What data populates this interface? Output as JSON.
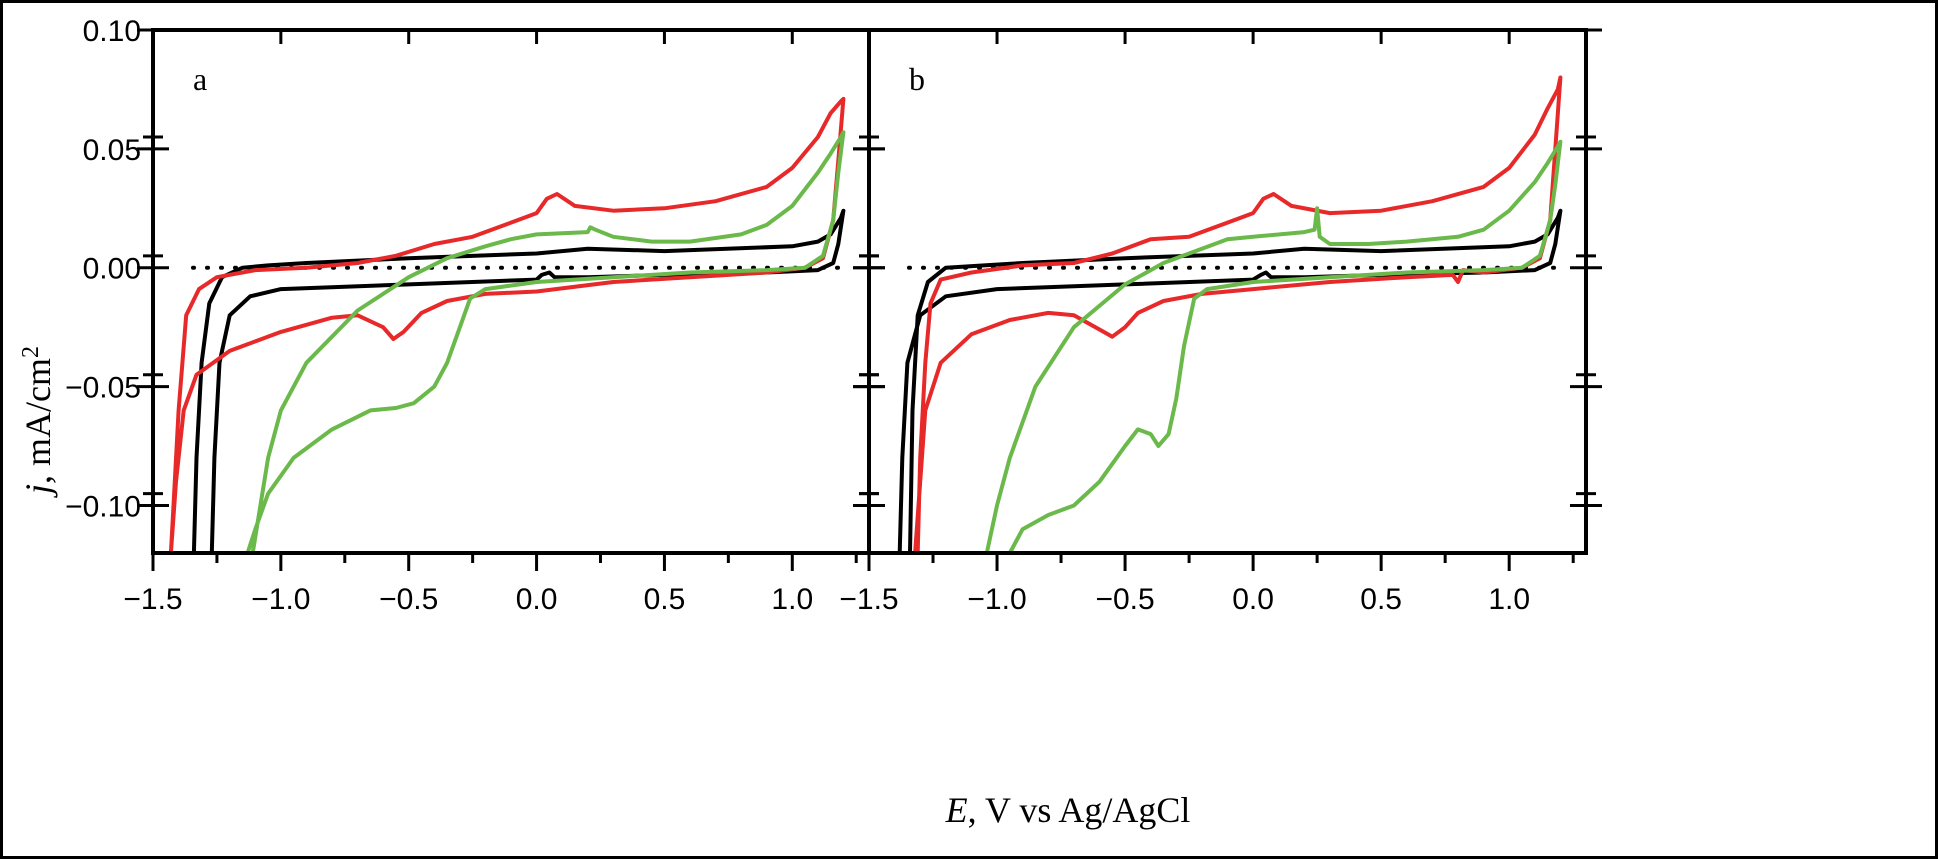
{
  "figure": {
    "ylabel_italic": "j",
    "ylabel_rest": ", mA/cm",
    "ylabel_sup": "2",
    "xlabel_italic": "E",
    "xlabel_rest": ", V vs Ag/AgCl"
  },
  "colors": {
    "black": "#000000",
    "red": "#e8292a",
    "green": "#6ab94a"
  },
  "chart_data": [
    {
      "panel": "a",
      "type": "line",
      "xlim": [
        -1.5,
        1.3
      ],
      "ylim": [
        -0.12,
        0.1
      ],
      "xticks": [
        -1.5,
        -1.0,
        -0.5,
        0.0,
        0.5,
        1.0
      ],
      "xtick_labels": [
        "−1.5",
        "−1.0",
        "−0.5",
        "0.0",
        "0.5",
        "1.0"
      ],
      "yticks": [
        0.1,
        0.05,
        0.0,
        -0.05,
        -0.1
      ],
      "ytick_labels": [
        "0.10",
        "0.05",
        "0.00",
        "−0.05",
        "−0.10"
      ],
      "zero_line": true,
      "series": [
        {
          "color": "black",
          "points": [
            [
              -1.27,
              -0.12
            ],
            [
              -1.26,
              -0.08
            ],
            [
              -1.24,
              -0.04
            ],
            [
              -1.2,
              -0.02
            ],
            [
              -1.12,
              -0.012
            ],
            [
              -1.0,
              -0.009
            ],
            [
              -0.5,
              -0.007
            ],
            [
              0.0,
              -0.005
            ],
            [
              0.02,
              -0.003
            ],
            [
              0.05,
              -0.002
            ],
            [
              0.07,
              -0.004
            ],
            [
              0.2,
              -0.004
            ],
            [
              0.5,
              -0.003
            ],
            [
              0.9,
              -0.002
            ],
            [
              1.1,
              -0.001
            ],
            [
              1.16,
              0.002
            ],
            [
              1.18,
              0.01
            ],
            [
              1.2,
              0.024
            ],
            [
              1.19,
              0.021
            ],
            [
              1.15,
              0.014
            ],
            [
              1.1,
              0.011
            ],
            [
              1.0,
              0.009
            ],
            [
              0.5,
              0.007
            ],
            [
              0.2,
              0.008
            ],
            [
              0.0,
              0.006
            ],
            [
              -0.5,
              0.004
            ],
            [
              -0.9,
              0.002
            ],
            [
              -1.05,
              0.001
            ],
            [
              -1.15,
              0.0
            ],
            [
              -1.23,
              -0.004
            ],
            [
              -1.28,
              -0.015
            ],
            [
              -1.31,
              -0.04
            ],
            [
              -1.33,
              -0.08
            ],
            [
              -1.34,
              -0.12
            ]
          ]
        },
        {
          "color": "red",
          "points": [
            [
              -1.43,
              -0.12
            ],
            [
              -1.41,
              -0.09
            ],
            [
              -1.38,
              -0.06
            ],
            [
              -1.33,
              -0.045
            ],
            [
              -1.2,
              -0.035
            ],
            [
              -1.0,
              -0.027
            ],
            [
              -0.8,
              -0.021
            ],
            [
              -0.7,
              -0.02
            ],
            [
              -0.6,
              -0.025
            ],
            [
              -0.56,
              -0.03
            ],
            [
              -0.52,
              -0.027
            ],
            [
              -0.45,
              -0.019
            ],
            [
              -0.35,
              -0.014
            ],
            [
              -0.2,
              -0.011
            ],
            [
              0.0,
              -0.01
            ],
            [
              0.3,
              -0.006
            ],
            [
              0.6,
              -0.004
            ],
            [
              0.9,
              -0.002
            ],
            [
              1.05,
              0.0
            ],
            [
              1.12,
              0.004
            ],
            [
              1.16,
              0.02
            ],
            [
              1.18,
              0.045
            ],
            [
              1.2,
              0.071
            ],
            [
              1.19,
              0.07
            ],
            [
              1.15,
              0.065
            ],
            [
              1.1,
              0.055
            ],
            [
              1.0,
              0.042
            ],
            [
              0.9,
              0.034
            ],
            [
              0.7,
              0.028
            ],
            [
              0.5,
              0.025
            ],
            [
              0.3,
              0.024
            ],
            [
              0.15,
              0.026
            ],
            [
              0.08,
              0.031
            ],
            [
              0.04,
              0.029
            ],
            [
              0.0,
              0.023
            ],
            [
              -0.1,
              0.019
            ],
            [
              -0.25,
              0.013
            ],
            [
              -0.4,
              0.01
            ],
            [
              -0.55,
              0.005
            ],
            [
              -0.7,
              0.002
            ],
            [
              -0.9,
              0.0
            ],
            [
              -1.1,
              -0.001
            ],
            [
              -1.25,
              -0.004
            ],
            [
              -1.32,
              -0.009
            ],
            [
              -1.37,
              -0.02
            ],
            [
              -1.4,
              -0.06
            ],
            [
              -1.42,
              -0.1
            ],
            [
              -1.43,
              -0.12
            ]
          ]
        },
        {
          "color": "green",
          "points": [
            [
              -1.13,
              -0.12
            ],
            [
              -1.1,
              -0.11
            ],
            [
              -1.05,
              -0.095
            ],
            [
              -0.95,
              -0.08
            ],
            [
              -0.8,
              -0.068
            ],
            [
              -0.65,
              -0.06
            ],
            [
              -0.55,
              -0.059
            ],
            [
              -0.48,
              -0.057
            ],
            [
              -0.4,
              -0.05
            ],
            [
              -0.35,
              -0.04
            ],
            [
              -0.3,
              -0.025
            ],
            [
              -0.26,
              -0.013
            ],
            [
              -0.2,
              -0.009
            ],
            [
              0.0,
              -0.006
            ],
            [
              0.3,
              -0.004
            ],
            [
              0.6,
              -0.002
            ],
            [
              0.9,
              -0.001
            ],
            [
              1.05,
              0.0
            ],
            [
              1.12,
              0.005
            ],
            [
              1.16,
              0.02
            ],
            [
              1.18,
              0.04
            ],
            [
              1.2,
              0.057
            ],
            [
              1.19,
              0.055
            ],
            [
              1.15,
              0.048
            ],
            [
              1.1,
              0.04
            ],
            [
              1.0,
              0.026
            ],
            [
              0.9,
              0.018
            ],
            [
              0.8,
              0.014
            ],
            [
              0.6,
              0.011
            ],
            [
              0.45,
              0.011
            ],
            [
              0.3,
              0.013
            ],
            [
              0.23,
              0.016
            ],
            [
              0.21,
              0.017
            ],
            [
              0.2,
              0.015
            ],
            [
              0.0,
              0.014
            ],
            [
              -0.1,
              0.012
            ],
            [
              -0.2,
              0.009
            ],
            [
              -0.35,
              0.004
            ],
            [
              -0.5,
              -0.004
            ],
            [
              -0.7,
              -0.018
            ],
            [
              -0.9,
              -0.04
            ],
            [
              -1.0,
              -0.06
            ],
            [
              -1.05,
              -0.08
            ],
            [
              -1.08,
              -0.1
            ],
            [
              -1.11,
              -0.12
            ]
          ]
        }
      ]
    },
    {
      "panel": "b",
      "type": "line",
      "xlim": [
        -1.5,
        1.3
      ],
      "ylim": [
        -0.12,
        0.1
      ],
      "xticks": [
        -1.5,
        -1.0,
        -0.5,
        0.0,
        0.5,
        1.0
      ],
      "xtick_labels": [
        "−1.5",
        "−1.0",
        "−0.5",
        "0.0",
        "0.5",
        "1.0"
      ],
      "yticks": [
        0.1,
        0.05,
        0.0,
        -0.05,
        -0.1
      ],
      "ytick_labels": [
        "0.10",
        "0.05",
        "0.00",
        "−0.05",
        "−0.10"
      ],
      "zero_line": true,
      "series": [
        {
          "color": "black",
          "points": [
            [
              -1.38,
              -0.12
            ],
            [
              -1.37,
              -0.08
            ],
            [
              -1.35,
              -0.04
            ],
            [
              -1.3,
              -0.02
            ],
            [
              -1.2,
              -0.012
            ],
            [
              -1.0,
              -0.009
            ],
            [
              -0.5,
              -0.007
            ],
            [
              0.0,
              -0.005
            ],
            [
              0.03,
              -0.003
            ],
            [
              0.05,
              -0.002
            ],
            [
              0.07,
              -0.004
            ],
            [
              0.2,
              -0.004
            ],
            [
              0.5,
              -0.003
            ],
            [
              0.9,
              -0.002
            ],
            [
              1.1,
              -0.001
            ],
            [
              1.16,
              0.002
            ],
            [
              1.18,
              0.01
            ],
            [
              1.2,
              0.024
            ],
            [
              1.19,
              0.021
            ],
            [
              1.15,
              0.014
            ],
            [
              1.1,
              0.011
            ],
            [
              1.0,
              0.009
            ],
            [
              0.5,
              0.007
            ],
            [
              0.2,
              0.008
            ],
            [
              0.0,
              0.006
            ],
            [
              -0.5,
              0.004
            ],
            [
              -0.9,
              0.002
            ],
            [
              -1.05,
              0.001
            ],
            [
              -1.2,
              0.0
            ],
            [
              -1.27,
              -0.006
            ],
            [
              -1.31,
              -0.02
            ],
            [
              -1.33,
              -0.06
            ],
            [
              -1.34,
              -0.12
            ]
          ]
        },
        {
          "color": "red",
          "points": [
            [
              -1.32,
              -0.12
            ],
            [
              -1.3,
              -0.09
            ],
            [
              -1.28,
              -0.06
            ],
            [
              -1.22,
              -0.04
            ],
            [
              -1.1,
              -0.028
            ],
            [
              -0.95,
              -0.022
            ],
            [
              -0.8,
              -0.019
            ],
            [
              -0.7,
              -0.02
            ],
            [
              -0.6,
              -0.026
            ],
            [
              -0.55,
              -0.029
            ],
            [
              -0.5,
              -0.025
            ],
            [
              -0.45,
              -0.019
            ],
            [
              -0.35,
              -0.014
            ],
            [
              -0.2,
              -0.011
            ],
            [
              0.0,
              -0.009
            ],
            [
              0.3,
              -0.006
            ],
            [
              0.6,
              -0.004
            ],
            [
              0.78,
              -0.003
            ],
            [
              0.8,
              -0.006
            ],
            [
              0.82,
              -0.001
            ],
            [
              0.9,
              -0.002
            ],
            [
              1.05,
              0.0
            ],
            [
              1.12,
              0.004
            ],
            [
              1.16,
              0.02
            ],
            [
              1.18,
              0.05
            ],
            [
              1.2,
              0.08
            ],
            [
              1.19,
              0.075
            ],
            [
              1.15,
              0.067
            ],
            [
              1.1,
              0.056
            ],
            [
              1.0,
              0.042
            ],
            [
              0.9,
              0.034
            ],
            [
              0.7,
              0.028
            ],
            [
              0.5,
              0.024
            ],
            [
              0.3,
              0.023
            ],
            [
              0.15,
              0.026
            ],
            [
              0.08,
              0.031
            ],
            [
              0.04,
              0.029
            ],
            [
              0.0,
              0.023
            ],
            [
              -0.1,
              0.019
            ],
            [
              -0.25,
              0.013
            ],
            [
              -0.4,
              0.012
            ],
            [
              -0.55,
              0.006
            ],
            [
              -0.7,
              0.002
            ],
            [
              -0.9,
              0.001
            ],
            [
              -1.1,
              -0.002
            ],
            [
              -1.22,
              -0.005
            ],
            [
              -1.26,
              -0.015
            ],
            [
              -1.28,
              -0.04
            ],
            [
              -1.3,
              -0.08
            ],
            [
              -1.31,
              -0.12
            ]
          ]
        },
        {
          "color": "green",
          "points": [
            [
              -0.95,
              -0.12
            ],
            [
              -0.9,
              -0.11
            ],
            [
              -0.8,
              -0.104
            ],
            [
              -0.7,
              -0.1
            ],
            [
              -0.6,
              -0.09
            ],
            [
              -0.5,
              -0.075
            ],
            [
              -0.45,
              -0.068
            ],
            [
              -0.4,
              -0.07
            ],
            [
              -0.37,
              -0.075
            ],
            [
              -0.33,
              -0.07
            ],
            [
              -0.3,
              -0.055
            ],
            [
              -0.27,
              -0.033
            ],
            [
              -0.23,
              -0.013
            ],
            [
              -0.18,
              -0.009
            ],
            [
              0.0,
              -0.006
            ],
            [
              0.3,
              -0.004
            ],
            [
              0.6,
              -0.002
            ],
            [
              0.9,
              -0.001
            ],
            [
              1.05,
              0.0
            ],
            [
              1.12,
              0.005
            ],
            [
              1.16,
              0.02
            ],
            [
              1.18,
              0.035
            ],
            [
              1.2,
              0.053
            ],
            [
              1.19,
              0.051
            ],
            [
              1.15,
              0.044
            ],
            [
              1.1,
              0.036
            ],
            [
              1.0,
              0.024
            ],
            [
              0.9,
              0.016
            ],
            [
              0.8,
              0.013
            ],
            [
              0.6,
              0.011
            ],
            [
              0.45,
              0.01
            ],
            [
              0.3,
              0.01
            ],
            [
              0.26,
              0.013
            ],
            [
              0.25,
              0.025
            ],
            [
              0.24,
              0.016
            ],
            [
              0.2,
              0.015
            ],
            [
              0.0,
              0.013
            ],
            [
              -0.1,
              0.012
            ],
            [
              -0.2,
              0.008
            ],
            [
              -0.35,
              0.002
            ],
            [
              -0.5,
              -0.007
            ],
            [
              -0.7,
              -0.025
            ],
            [
              -0.85,
              -0.05
            ],
            [
              -0.95,
              -0.08
            ],
            [
              -1.0,
              -0.1
            ],
            [
              -1.04,
              -0.12
            ]
          ]
        }
      ]
    }
  ]
}
